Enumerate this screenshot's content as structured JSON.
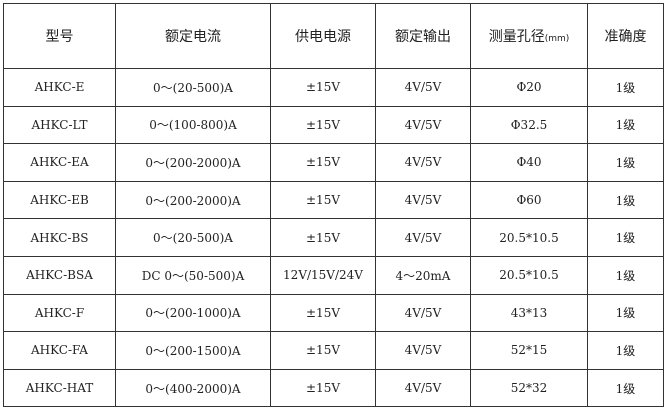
{
  "headers": [
    "型号",
    "额定电流",
    "供电电源",
    "额定输出",
    "测量孔径",
    "准确度"
  ],
  "header_unit": "(mm)",
  "rows": [
    [
      "AHKC-E",
      "0～(20-500)A",
      "±15V",
      "4V/5V",
      "Φ20",
      "1级"
    ],
    [
      "AHKC-LT",
      "0～(100-800)A",
      "±15V",
      "4V/5V",
      "Φ32.5",
      "1级"
    ],
    [
      "AHKC-EA",
      "0～(200-2000)A",
      "±15V",
      "4V/5V",
      "Φ40",
      "1级"
    ],
    [
      "AHKC-EB",
      "0～(200-2000)A",
      "±15V",
      "4V/5V",
      "Φ60",
      "1级"
    ],
    [
      "AHKC-BS",
      "0～(20-500)A",
      "±15V",
      "4V/5V",
      "20.5*10.5",
      "1级"
    ],
    [
      "AHKC-BSA",
      "DC 0～(50-500)A",
      "12V/15V/24V",
      "4～20mA",
      "20.5*10.5",
      "1级"
    ],
    [
      "AHKC-F",
      "0～(200-1000)A",
      "±15V",
      "4V/5V",
      "43*13",
      "1级"
    ],
    [
      "AHKC-FA",
      "0～(200-1500)A",
      "±15V",
      "4V/5V",
      "52*15",
      "1级"
    ],
    [
      "AHKC-HAT",
      "0～(400-2000)A",
      "±15V",
      "4V/5V",
      "52*32",
      "1级"
    ]
  ]
}
